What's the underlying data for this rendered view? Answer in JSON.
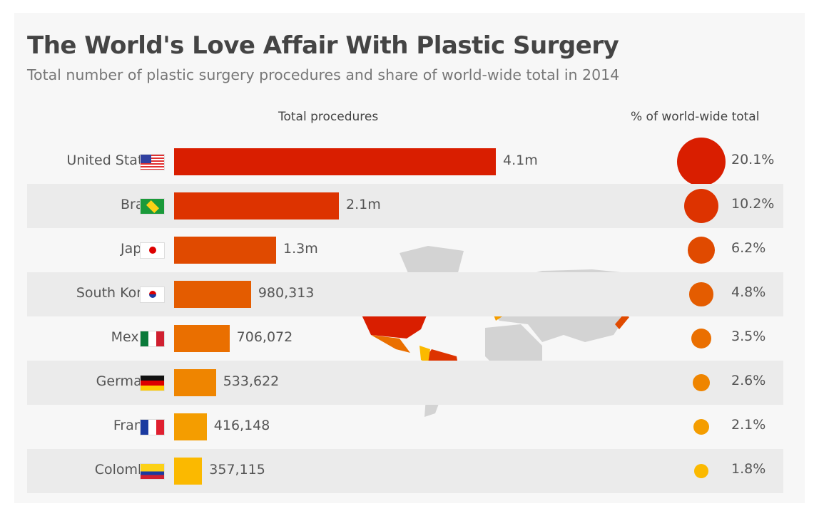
{
  "title": "The World's Love Affair With Plastic Surgery",
  "subtitle": "Total number of plastic surgery procedures and share of world-wide total in 2014",
  "chart_data": {
    "type": "bar",
    "title": "The World's Love Affair With Plastic Surgery",
    "subtitle": "Total number of plastic surgery procedures and share of world-wide total in 2014",
    "columns": [
      "Total procedures",
      "% of world-wide total"
    ],
    "categories": [
      "United States",
      "Brazil",
      "Japan",
      "South Korea",
      "Mexico",
      "Germany",
      "France",
      "Colombia"
    ],
    "values": [
      4100000,
      2100000,
      1300000,
      980313,
      706072,
      533622,
      416148,
      357115
    ],
    "value_labels": [
      "4.1m",
      "2.1m",
      "1.3m",
      "980,313",
      "706,072",
      "533,622",
      "416,148",
      "357,115"
    ],
    "share_percent": [
      20.1,
      10.2,
      6.2,
      4.8,
      3.5,
      2.6,
      2.1,
      1.8
    ],
    "share_labels": [
      "20.1%",
      "10.2%",
      "6.2%",
      "4.8%",
      "3.5%",
      "2.6%",
      "2.1%",
      "1.8%"
    ],
    "colors": [
      "#d91e00",
      "#dd3300",
      "#e04a00",
      "#e45c00",
      "#ea6f00",
      "#ef8500",
      "#f49d00",
      "#fbb900"
    ],
    "flags": [
      "us",
      "br",
      "jp",
      "kr",
      "mx",
      "de",
      "fr",
      "co"
    ]
  }
}
